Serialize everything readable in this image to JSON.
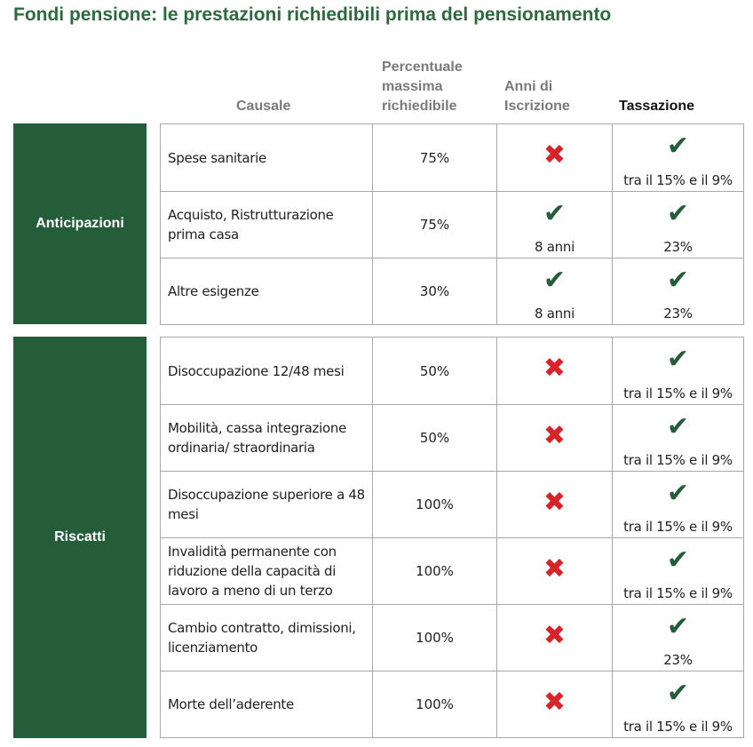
{
  "title": "Fondi pensione: le prestazioni richiedibili prima del pensionamento",
  "headers": {
    "causale": "Causale",
    "percentuale": "Percentuale massima richiedibile",
    "anni": "Anni di Iscrizione",
    "tassazione": "Tassazione"
  },
  "colors": {
    "green": "#255d3b",
    "red": "#d9232b"
  },
  "icons": {
    "yes": "check-icon",
    "no": "cross-icon"
  },
  "groups": [
    {
      "label": "Anticipazioni",
      "rows": [
        {
          "causale": "Spese sanitarie",
          "percentuale": "75%",
          "anni": {
            "mark": "no",
            "text": ""
          },
          "tassazione": {
            "mark": "yes",
            "text": "tra il 15% e il 9%"
          }
        },
        {
          "causale": "Acquisto, Ristrutturazione prima casa",
          "percentuale": "75%",
          "anni": {
            "mark": "yes",
            "text": "8 anni"
          },
          "tassazione": {
            "mark": "yes",
            "text": "23%"
          }
        },
        {
          "causale": "Altre esigenze",
          "percentuale": "30%",
          "anni": {
            "mark": "yes",
            "text": "8 anni"
          },
          "tassazione": {
            "mark": "yes",
            "text": "23%"
          }
        }
      ]
    },
    {
      "label": "Riscatti",
      "rows": [
        {
          "causale": "Disoccupazione 12/48 mesi",
          "percentuale": "50%",
          "anni": {
            "mark": "no",
            "text": ""
          },
          "tassazione": {
            "mark": "yes",
            "text": "tra il 15% e il 9%"
          }
        },
        {
          "causale": "Mobilità, cassa integrazione ordinaria/ straordinaria",
          "percentuale": "50%",
          "anni": {
            "mark": "no",
            "text": ""
          },
          "tassazione": {
            "mark": "yes",
            "text": "tra il 15% e il 9%"
          }
        },
        {
          "causale": "Disoccupazione superiore a 48 mesi",
          "percentuale": "100%",
          "anni": {
            "mark": "no",
            "text": ""
          },
          "tassazione": {
            "mark": "yes",
            "text": "tra il 15% e il 9%"
          }
        },
        {
          "causale": "Invalidità permanente con riduzione della capacità di lavoro a meno di un terzo",
          "percentuale": "100%",
          "anni": {
            "mark": "no",
            "text": ""
          },
          "tassazione": {
            "mark": "yes",
            "text": "tra il 15% e il 9%"
          }
        },
        {
          "causale": "Cambio contratto, dimissioni, licenziamento",
          "percentuale": "100%",
          "anni": {
            "mark": "no",
            "text": ""
          },
          "tassazione": {
            "mark": "yes",
            "text": "23%"
          }
        },
        {
          "causale": "Morte dell’aderente",
          "percentuale": "100%",
          "anni": {
            "mark": "no",
            "text": ""
          },
          "tassazione": {
            "mark": "yes",
            "text": "tra il 15% e il 9%"
          }
        }
      ]
    }
  ]
}
